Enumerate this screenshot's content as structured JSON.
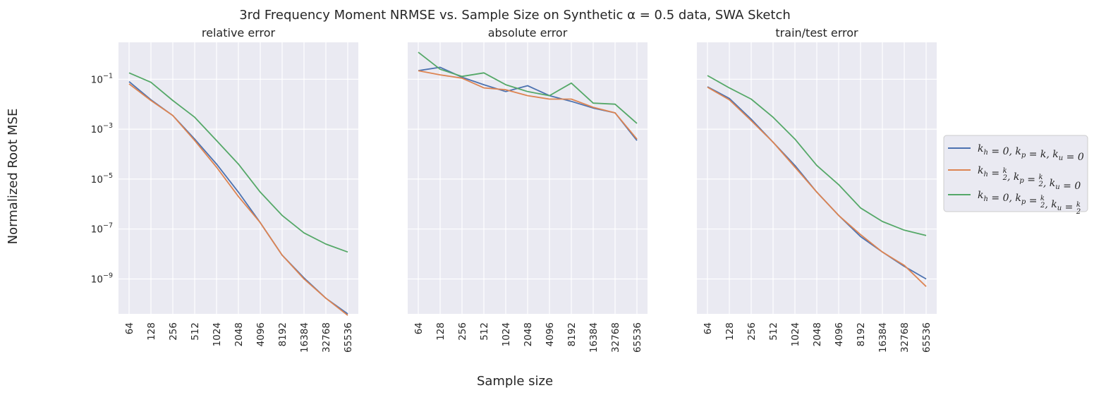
{
  "figure": {
    "title": "3rd Frequency Moment NRMSE vs. Sample Size on Synthetic α = 0.5 data, SWA Sketch",
    "xlabel": "Sample size",
    "ylabel": "Normalized Root MSE"
  },
  "colors": {
    "series": [
      "#4c72b0",
      "#dd8452",
      "#55a868"
    ],
    "panel_bg": "#eaeaf2",
    "grid": "#ffffff"
  },
  "legend": {
    "placement": "right, outside",
    "entries": [
      "k_h=0, k_p=k, k_u=0",
      "k_h=k/2, k_p=k/2, k_u=0",
      "k_h=0, k_p=k/2, k_u=k/2"
    ]
  },
  "chart_data": [
    {
      "type": "line",
      "title": "relative error",
      "x": [
        "64",
        "128",
        "256",
        "512",
        "1024",
        "2048",
        "4096",
        "8192",
        "16384",
        "32768",
        "65536"
      ],
      "yscale": "log",
      "ylim": [
        4e-11,
        3
      ],
      "yticks": [
        "10^-1",
        "10^-3",
        "10^-5",
        "10^-7",
        "10^-9"
      ],
      "grid": true,
      "series": [
        {
          "name": "k_h=0, k_p=k, k_u=0",
          "values": [
            0.08,
            0.015,
            0.0035,
            0.0004,
            4e-05,
            3e-06,
            1.8e-07,
            9e-09,
            1.1e-09,
            1.7e-10,
            4e-11
          ]
        },
        {
          "name": "k_h=k/2, k_p=k/2, k_u=0",
          "values": [
            0.065,
            0.014,
            0.0035,
            0.00035,
            3e-05,
            2e-06,
            1.8e-07,
            9e-09,
            1e-09,
            1.7e-10,
            3.5e-11
          ]
        },
        {
          "name": "k_h=0, k_p=k/2, k_u=k/2",
          "values": [
            0.18,
            0.075,
            0.014,
            0.003,
            0.00035,
            4e-05,
            3e-06,
            3.5e-07,
            7e-08,
            2.5e-08,
            1.2e-08
          ]
        }
      ]
    },
    {
      "type": "line",
      "title": "absolute error",
      "x": [
        "64",
        "128",
        "256",
        "512",
        "1024",
        "2048",
        "4096",
        "8192",
        "16384",
        "32768",
        "65536"
      ],
      "yscale": "log",
      "ylim": [
        4e-11,
        3
      ],
      "yticks": [
        "10^-1",
        "10^-3",
        "10^-5",
        "10^-7",
        "10^-9"
      ],
      "grid": true,
      "series": [
        {
          "name": "k_h=0, k_p=k, k_u=0",
          "values": [
            0.22,
            0.3,
            0.12,
            0.06,
            0.032,
            0.055,
            0.022,
            0.013,
            0.007,
            0.0045,
            0.00035
          ]
        },
        {
          "name": "k_h=k/2, k_p=k/2, k_u=0",
          "values": [
            0.22,
            0.15,
            0.11,
            0.045,
            0.038,
            0.022,
            0.016,
            0.016,
            0.0075,
            0.0045,
            0.0004
          ]
        },
        {
          "name": "k_h=0, k_p=k/2, k_u=k/2",
          "values": [
            1.2,
            0.25,
            0.13,
            0.18,
            0.06,
            0.032,
            0.022,
            0.07,
            0.011,
            0.01,
            0.0017
          ]
        }
      ]
    },
    {
      "type": "line",
      "title": "train/test error",
      "x": [
        "64",
        "128",
        "256",
        "512",
        "1024",
        "2048",
        "4096",
        "8192",
        "16384",
        "32768",
        "65536"
      ],
      "yscale": "log",
      "ylim": [
        4e-11,
        3
      ],
      "yticks": [
        "10^-1",
        "10^-3",
        "10^-5",
        "10^-7",
        "10^-9"
      ],
      "grid": true,
      "series": [
        {
          "name": "k_h=0, k_p=k, k_u=0",
          "values": [
            0.05,
            0.017,
            0.0025,
            0.0003,
            3.5e-05,
            3e-06,
            3.5e-07,
            5e-08,
            1.2e-08,
            3.2e-09,
            1e-09
          ]
        },
        {
          "name": "k_h=k/2, k_p=k/2, k_u=0",
          "values": [
            0.048,
            0.015,
            0.0022,
            0.0003,
            3e-05,
            3e-06,
            3.5e-07,
            6e-08,
            1.2e-08,
            3.5e-09,
            5e-10
          ]
        },
        {
          "name": "k_h=0, k_p=k/2, k_u=k/2",
          "values": [
            0.14,
            0.045,
            0.016,
            0.003,
            0.0004,
            3.5e-05,
            6e-06,
            7e-07,
            2e-07,
            9e-08,
            5.5e-08
          ]
        }
      ]
    }
  ]
}
